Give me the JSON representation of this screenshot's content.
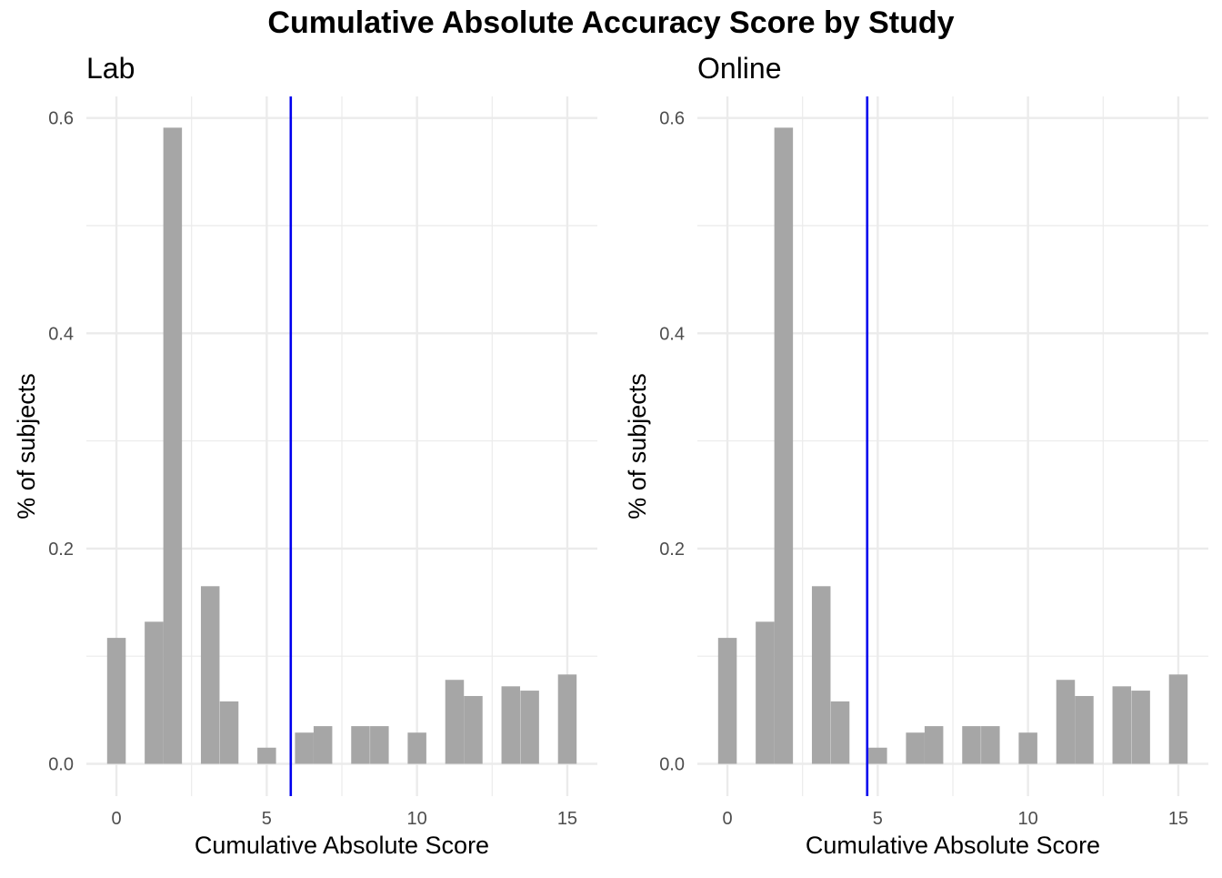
{
  "chart_data": {
    "type": "bar",
    "title": "Cumulative Absolute Accuracy Score by Study",
    "bar_color": "#a6a6a6",
    "mean_line_color": "#0000ee",
    "grid_color": "#ebebeb",
    "panels": [
      {
        "name": "Lab",
        "xlabel": "Cumulative Absolute Score",
        "ylabel": "% of subjects",
        "xlim": [
          -1,
          16
        ],
        "ylim": [
          -0.03,
          0.62
        ],
        "x_ticks": [
          0,
          5,
          10,
          15
        ],
        "y_ticks": [
          0.0,
          0.2,
          0.4,
          0.6
        ],
        "y_tick_labels": [
          "0.0",
          "0.2",
          "0.4",
          "0.6"
        ],
        "x_ticks_minor": [
          2.5,
          7.5,
          12.5
        ],
        "y_ticks_minor": [
          0.1,
          0.3,
          0.5
        ],
        "bin_width": 0.62,
        "bars": [
          {
            "x": 0.0,
            "y": 0.117
          },
          {
            "x": 1.25,
            "y": 0.132
          },
          {
            "x": 1.87,
            "y": 0.591
          },
          {
            "x": 3.12,
            "y": 0.165
          },
          {
            "x": 3.75,
            "y": 0.058
          },
          {
            "x": 5.0,
            "y": 0.015
          },
          {
            "x": 6.25,
            "y": 0.029
          },
          {
            "x": 6.87,
            "y": 0.035
          },
          {
            "x": 8.12,
            "y": 0.035
          },
          {
            "x": 8.75,
            "y": 0.035
          },
          {
            "x": 10.0,
            "y": 0.029
          },
          {
            "x": 11.25,
            "y": 0.078
          },
          {
            "x": 11.87,
            "y": 0.063
          },
          {
            "x": 13.12,
            "y": 0.072
          },
          {
            "x": 13.75,
            "y": 0.068
          },
          {
            "x": 15.0,
            "y": 0.083
          }
        ],
        "mean_line": 5.8
      },
      {
        "name": "Online",
        "xlabel": "Cumulative Absolute Score",
        "ylabel": "% of subjects",
        "xlim": [
          -1,
          16
        ],
        "ylim": [
          -0.03,
          0.62
        ],
        "x_ticks": [
          0,
          5,
          10,
          15
        ],
        "y_ticks": [
          0.0,
          0.2,
          0.4,
          0.6
        ],
        "y_tick_labels": [
          "0.0",
          "0.2",
          "0.4",
          "0.6"
        ],
        "x_ticks_minor": [
          2.5,
          7.5,
          12.5
        ],
        "y_ticks_minor": [
          0.1,
          0.3,
          0.5
        ],
        "bin_width": 0.62,
        "bars": [
          {
            "x": 0.0,
            "y": 0.117
          },
          {
            "x": 1.25,
            "y": 0.132
          },
          {
            "x": 1.87,
            "y": 0.591
          },
          {
            "x": 3.12,
            "y": 0.165
          },
          {
            "x": 3.75,
            "y": 0.058
          },
          {
            "x": 5.0,
            "y": 0.015
          },
          {
            "x": 6.25,
            "y": 0.029
          },
          {
            "x": 6.87,
            "y": 0.035
          },
          {
            "x": 8.12,
            "y": 0.035
          },
          {
            "x": 8.75,
            "y": 0.035
          },
          {
            "x": 10.0,
            "y": 0.029
          },
          {
            "x": 11.25,
            "y": 0.078
          },
          {
            "x": 11.87,
            "y": 0.063
          },
          {
            "x": 13.12,
            "y": 0.072
          },
          {
            "x": 13.75,
            "y": 0.068
          },
          {
            "x": 15.0,
            "y": 0.083
          }
        ],
        "mean_line": 4.65
      }
    ]
  }
}
